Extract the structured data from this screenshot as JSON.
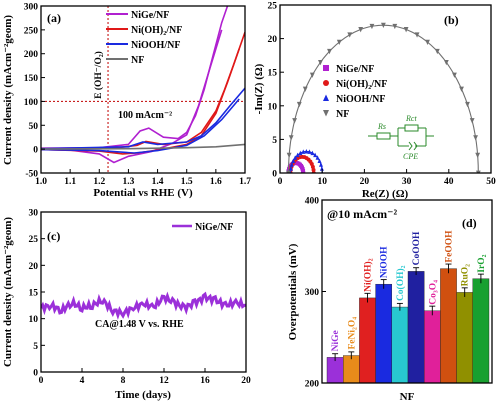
{
  "chart_data": [
    {
      "panel": "(a)",
      "type": "line",
      "xlabel": "Potential vs RHE (V)",
      "ylabel": "Current density (mAcm⁻²geom)",
      "xlim": [
        1.0,
        1.7
      ],
      "ylim": [
        -50,
        300
      ],
      "xticks": [
        "1.0",
        "1.1",
        "1.2",
        "1.3",
        "1.4",
        "1.5",
        "1.6",
        "1.7"
      ],
      "yticks": [
        "-50",
        "0",
        "50",
        "100",
        "150",
        "200",
        "250",
        "300"
      ],
      "annotations": [
        "E (OH⁻/O₂)",
        "100 mAcm⁻²"
      ],
      "ref_lines": {
        "vertical_x": 1.23,
        "horizontal_y": 100
      },
      "legend_position": "top-left",
      "series": [
        {
          "name": "NiGe/NF",
          "color": "#b020d0",
          "forward": [
            [
              1.0,
              2
            ],
            [
              1.2,
              3
            ],
            [
              1.3,
              10
            ],
            [
              1.34,
              38
            ],
            [
              1.37,
              44
            ],
            [
              1.42,
              25
            ],
            [
              1.47,
              22
            ],
            [
              1.5,
              35
            ],
            [
              1.53,
              70
            ],
            [
              1.56,
              125
            ],
            [
              1.59,
              195
            ],
            [
              1.62,
              265
            ],
            [
              1.64,
              300
            ]
          ],
          "reverse": [
            [
              1.62,
              250
            ],
            [
              1.58,
              170
            ],
            [
              1.54,
              90
            ],
            [
              1.5,
              30
            ],
            [
              1.45,
              12
            ],
            [
              1.38,
              -5
            ],
            [
              1.3,
              -15
            ],
            [
              1.25,
              -28
            ],
            [
              1.2,
              -10
            ],
            [
              1.1,
              -2
            ],
            [
              1.0,
              -1
            ]
          ]
        },
        {
          "name": "Ni(OH)₂/NF",
          "color": "#e01818",
          "forward": [
            [
              1.0,
              1
            ],
            [
              1.25,
              2
            ],
            [
              1.33,
              8
            ],
            [
              1.36,
              16
            ],
            [
              1.42,
              10
            ],
            [
              1.5,
              15
            ],
            [
              1.55,
              35
            ],
            [
              1.6,
              80
            ],
            [
              1.63,
              125
            ],
            [
              1.66,
              175
            ],
            [
              1.7,
              245
            ]
          ],
          "reverse": [
            [
              1.68,
              210
            ],
            [
              1.64,
              140
            ],
            [
              1.6,
              75
            ],
            [
              1.55,
              28
            ],
            [
              1.5,
              10
            ],
            [
              1.4,
              -2
            ],
            [
              1.33,
              -8
            ],
            [
              1.28,
              -10
            ],
            [
              1.2,
              -4
            ],
            [
              1.0,
              -1
            ]
          ]
        },
        {
          "name": "NiOOH/NF",
          "color": "#1a2ae0",
          "forward": [
            [
              1.0,
              1
            ],
            [
              1.3,
              5
            ],
            [
              1.35,
              15
            ],
            [
              1.4,
              10
            ],
            [
              1.5,
              15
            ],
            [
              1.55,
              28
            ],
            [
              1.6,
              55
            ],
            [
              1.65,
              92
            ],
            [
              1.7,
              128
            ]
          ],
          "reverse": [
            [
              1.68,
              105
            ],
            [
              1.62,
              62
            ],
            [
              1.56,
              28
            ],
            [
              1.5,
              8
            ],
            [
              1.4,
              -3
            ],
            [
              1.32,
              -8
            ],
            [
              1.2,
              -3
            ],
            [
              1.0,
              -1
            ]
          ]
        },
        {
          "name": "NF",
          "color": "#707070",
          "points": [
            [
              1.0,
              0
            ],
            [
              1.3,
              1
            ],
            [
              1.5,
              3
            ],
            [
              1.6,
              5
            ],
            [
              1.7,
              10
            ]
          ]
        }
      ]
    },
    {
      "panel": "(b)",
      "type": "scatter",
      "xlabel": "Re(Z) (Ω)",
      "ylabel": "-Im(Z) (Ω)",
      "xlim": [
        0,
        50
      ],
      "ylim": [
        0,
        25
      ],
      "xticks": [
        "0",
        "10",
        "20",
        "30",
        "40",
        "50"
      ],
      "yticks": [
        "0",
        "5",
        "10",
        "15",
        "20",
        "25"
      ],
      "legend_position": "center-left",
      "circuit_labels": {
        "rs": "Rs",
        "rct": "Rct",
        "cpe": "CPE"
      },
      "series": [
        {
          "name": "NiGe/NF",
          "color": "#b020d0",
          "marker": "square",
          "x_range": [
            2,
            5.5
          ],
          "peak": 1.5
        },
        {
          "name": "Ni(OH)₂/NF",
          "color": "#e01818",
          "marker": "circle",
          "x_range": [
            2.5,
            8
          ],
          "peak": 2.4
        },
        {
          "name": "NiOOH/NF",
          "color": "#1a2ae0",
          "marker": "triangle",
          "x_range": [
            2.5,
            10
          ],
          "peak": 3.2
        },
        {
          "name": "NF",
          "color": "#707070",
          "marker": "triangle-down",
          "x_range": [
            2,
            47
          ],
          "peak": 22
        }
      ]
    },
    {
      "panel": "(c)",
      "type": "line",
      "xlabel": "Time (days)",
      "ylabel": "Current density (mAcm⁻²geom)",
      "xlim": [
        0,
        20
      ],
      "ylim": [
        0,
        30
      ],
      "xticks": [
        "0",
        "4",
        "8",
        "12",
        "16",
        "20"
      ],
      "yticks": [
        "0",
        "5",
        "10",
        "15",
        "20",
        "25",
        "30"
      ],
      "annotation": "CA@1.48 V vs. RHE",
      "legend_position": "top-right",
      "series": [
        {
          "name": "NiGe/NF",
          "color": "#9b30d9",
          "points": [
            [
              0,
              12
            ],
            [
              1,
              12.5
            ],
            [
              2,
              11.5
            ],
            [
              3,
              13
            ],
            [
              4,
              12
            ],
            [
              5,
              12.5
            ],
            [
              6,
              13.5
            ],
            [
              7,
              11.5
            ],
            [
              8,
              11
            ],
            [
              9,
              12
            ],
            [
              10,
              12.8
            ],
            [
              11,
              12.2
            ],
            [
              12,
              14
            ],
            [
              13,
              13
            ],
            [
              14,
              12
            ],
            [
              15,
              13
            ],
            [
              16,
              14
            ],
            [
              17,
              13.5
            ],
            [
              18,
              12.5
            ],
            [
              19,
              13
            ],
            [
              20,
              12.5
            ]
          ]
        }
      ]
    },
    {
      "panel": "(d)",
      "type": "bar",
      "title": "@10 mAcm⁻²",
      "xlabel": "NF",
      "ylabel": "Overpotentials (mV)",
      "ylim": [
        200,
        400
      ],
      "yticks": [
        "200",
        "300",
        "400"
      ],
      "categories": [
        "NiGe",
        "FeNi₂O₄",
        "Ni(OH)₂",
        "NiOOH",
        "Co(OH)₂",
        "CoOOH",
        "Co₃O₄",
        "FeOOH",
        "RuO₂",
        "IrO₂"
      ],
      "values": [
        228,
        230,
        293,
        308,
        283,
        322,
        279,
        325,
        299,
        314
      ],
      "errors": [
        4,
        4,
        5,
        5,
        4,
        4,
        5,
        5,
        5,
        5
      ],
      "colors": [
        "#9b30d9",
        "#e88b1a",
        "#e02020",
        "#1a2ae0",
        "#28c8d0",
        "#2020a0",
        "#e0209a",
        "#d05010",
        "#909000",
        "#18a030"
      ]
    }
  ]
}
